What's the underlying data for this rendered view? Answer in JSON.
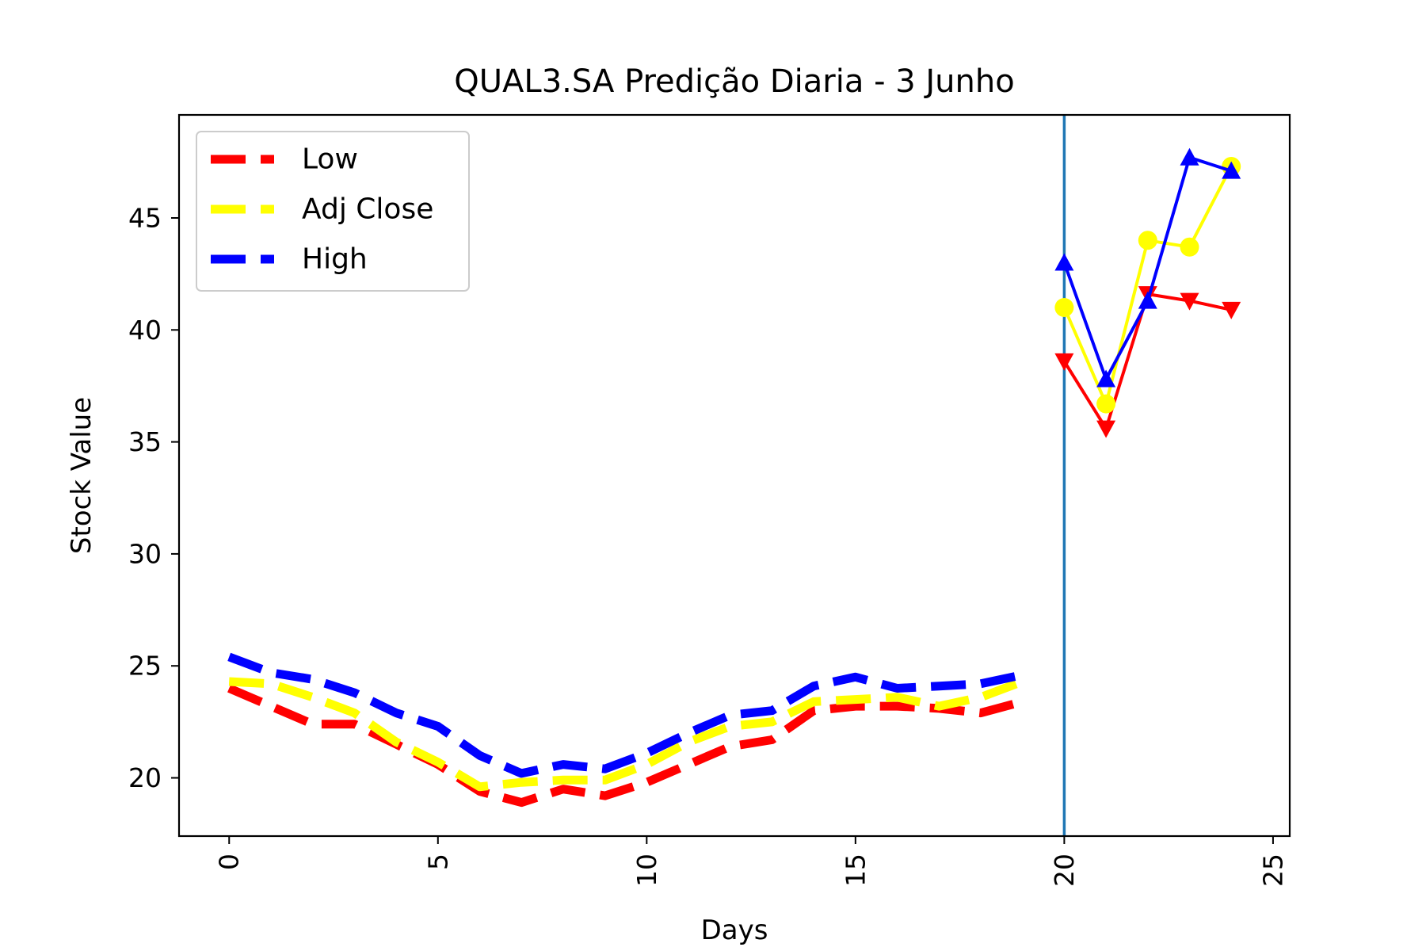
{
  "chart_data": {
    "type": "line",
    "title": "QUAL3.SA Predição Diaria - 3 Junho",
    "xlabel": "Days",
    "ylabel": "Stock Value",
    "xlim": [
      -1.2,
      25.4
    ],
    "ylim": [
      17.4,
      49.6
    ],
    "xticks": [
      0,
      5,
      10,
      15,
      20,
      25
    ],
    "yticks": [
      20,
      25,
      30,
      35,
      40,
      45
    ],
    "xtick_rotation": 90,
    "grid": false,
    "legend_position": "top-left",
    "vline": {
      "x": 20,
      "color": "#1f77b4"
    },
    "historical": {
      "x": [
        0,
        1,
        2,
        3,
        4,
        5,
        6,
        7,
        8,
        9,
        10,
        11,
        12,
        13,
        14,
        15,
        16,
        17,
        18,
        19
      ],
      "series": [
        {
          "name": "Low",
          "color": "#ff0000",
          "values": [
            24.0,
            23.2,
            22.4,
            22.4,
            21.5,
            20.6,
            19.4,
            18.9,
            19.5,
            19.2,
            19.8,
            20.6,
            21.4,
            21.7,
            23.0,
            23.2,
            23.2,
            23.1,
            22.9,
            23.4
          ]
        },
        {
          "name": "Adj Close",
          "color": "#ffff00",
          "values": [
            24.3,
            24.2,
            23.6,
            22.9,
            21.6,
            20.7,
            19.6,
            19.8,
            19.9,
            19.9,
            20.6,
            21.6,
            22.3,
            22.5,
            23.4,
            23.5,
            23.6,
            23.2,
            23.6,
            24.3
          ]
        },
        {
          "name": "High",
          "color": "#0000ff",
          "values": [
            25.4,
            24.7,
            24.4,
            23.8,
            22.9,
            22.3,
            21.0,
            20.2,
            20.6,
            20.4,
            21.1,
            22.0,
            22.8,
            23.0,
            24.1,
            24.5,
            24.0,
            24.1,
            24.2,
            24.6
          ]
        }
      ]
    },
    "prediction": {
      "x": [
        20,
        21,
        22,
        23,
        24
      ],
      "series": [
        {
          "name": "Low",
          "color": "#ff0000",
          "marker": "triangle-down",
          "values": [
            38.6,
            35.6,
            41.6,
            41.3,
            40.9
          ]
        },
        {
          "name": "Adj Close",
          "color": "#ffff00",
          "marker": "circle",
          "values": [
            41.0,
            36.7,
            44.0,
            43.7,
            47.3
          ]
        },
        {
          "name": "High",
          "color": "#0000ff",
          "marker": "triangle-up",
          "values": [
            43.0,
            37.8,
            41.3,
            47.7,
            47.1
          ]
        }
      ]
    },
    "legend": [
      {
        "label": "Low",
        "color": "#ff0000"
      },
      {
        "label": "Adj Close",
        "color": "#ffff00"
      },
      {
        "label": "High",
        "color": "#0000ff"
      }
    ]
  }
}
